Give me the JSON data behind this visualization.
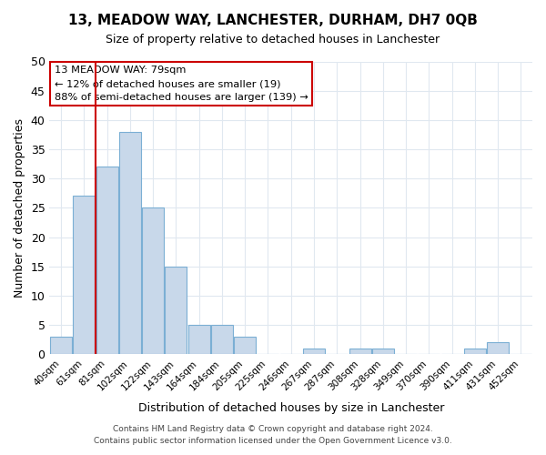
{
  "title": "13, MEADOW WAY, LANCHESTER, DURHAM, DH7 0QB",
  "subtitle": "Size of property relative to detached houses in Lanchester",
  "xlabel": "Distribution of detached houses by size in Lanchester",
  "ylabel": "Number of detached properties",
  "categories": [
    "40sqm",
    "61sqm",
    "81sqm",
    "102sqm",
    "122sqm",
    "143sqm",
    "164sqm",
    "184sqm",
    "205sqm",
    "225sqm",
    "246sqm",
    "267sqm",
    "287sqm",
    "308sqm",
    "328sqm",
    "349sqm",
    "370sqm",
    "390sqm",
    "411sqm",
    "431sqm",
    "452sqm"
  ],
  "values": [
    3,
    27,
    32,
    38,
    25,
    15,
    5,
    5,
    3,
    0,
    0,
    1,
    0,
    1,
    1,
    0,
    0,
    0,
    1,
    2,
    0
  ],
  "bar_color": "#c8d8ea",
  "bar_edge_color": "#7bafd4",
  "property_line_color": "#cc0000",
  "annotation_title": "13 MEADOW WAY: 79sqm",
  "annotation_line1": "← 12% of detached houses are smaller (19)",
  "annotation_line2": "88% of semi-detached houses are larger (139) →",
  "annotation_box_color": "#ffffff",
  "annotation_box_edge_color": "#cc0000",
  "ylim": [
    0,
    50
  ],
  "yticks": [
    0,
    5,
    10,
    15,
    20,
    25,
    30,
    35,
    40,
    45,
    50
  ],
  "footer1": "Contains HM Land Registry data © Crown copyright and database right 2024.",
  "footer2": "Contains public sector information licensed under the Open Government Licence v3.0.",
  "background_color": "#ffffff",
  "plot_background_color": "#ffffff",
  "grid_color": "#e0e8f0"
}
